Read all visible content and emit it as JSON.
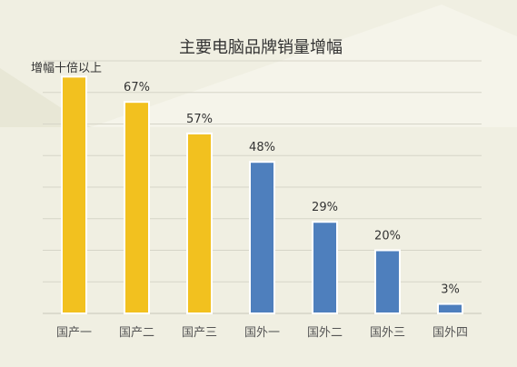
{
  "chart_data": {
    "type": "bar",
    "title": "主要电脑品牌销量增幅",
    "ylabel": "",
    "xlabel": "",
    "ylim": [
      0,
      80
    ],
    "grid": true,
    "legend": "none",
    "categories": [
      "国产一",
      "国产二",
      "国产三",
      "国外一",
      "国外二",
      "国外三",
      "国外四"
    ],
    "values": [
      75,
      67,
      57,
      48,
      29,
      20,
      3
    ],
    "data_labels": [
      "增幅十倍以上",
      "67%",
      "57%",
      "48%",
      "29%",
      "20%",
      "3%"
    ],
    "colors": [
      "#f2c11f",
      "#f2c11f",
      "#f2c11f",
      "#4e7fbd",
      "#4e7fbd",
      "#4e7fbd",
      "#4e7fbd"
    ]
  }
}
